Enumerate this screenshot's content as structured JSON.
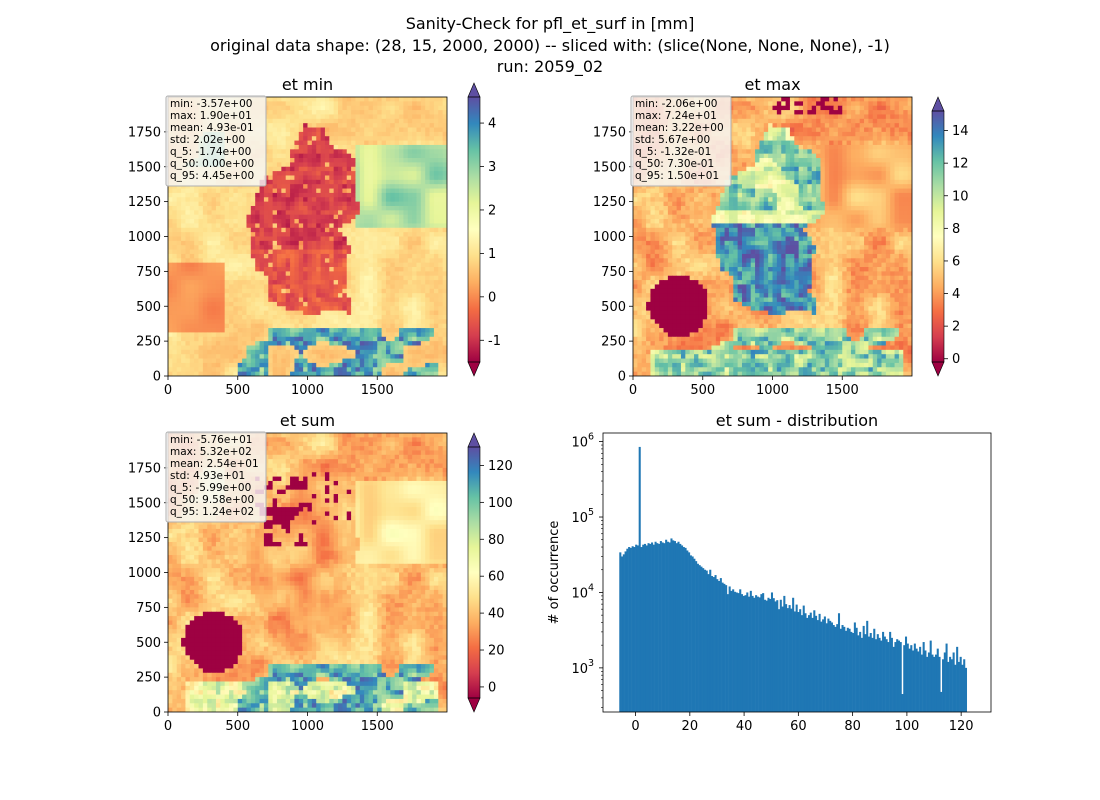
{
  "figure": {
    "title_lines": [
      "Sanity-Check for pfl_et_surf in [mm]",
      "original data shape: (28, 15, 2000, 2000) -- sliced with: (slice(None, None, None), -1)",
      "run: 2059_02"
    ]
  },
  "chart_data": [
    {
      "type": "heatmap",
      "title": "et min",
      "xticks": [
        0,
        500,
        1000,
        1500
      ],
      "yticks": [
        0,
        250,
        500,
        750,
        1000,
        1250,
        1500,
        1750
      ],
      "xlim": [
        0,
        2000
      ],
      "ylim": [
        0,
        2000
      ],
      "colormap": "Spectral",
      "colorbar": {
        "vmin": -1.5,
        "vmax": 4.6,
        "ticks": [
          -1,
          0,
          1,
          2,
          3,
          4
        ],
        "extend": "both"
      },
      "stats": [
        "min: -3.57e+00",
        "max: 1.90e+01",
        "mean: 4.93e-01",
        "std: 2.02e+00",
        "q_5: -1.74e+00",
        "q_50: 0.00e+00",
        "q_95: 4.45e+00"
      ],
      "pattern": "min"
    },
    {
      "type": "heatmap",
      "title": "et max",
      "xticks": [
        0,
        500,
        1000,
        1500
      ],
      "yticks": [
        0,
        250,
        500,
        750,
        1000,
        1250,
        1500,
        1750
      ],
      "xlim": [
        0,
        2000
      ],
      "ylim": [
        0,
        2000
      ],
      "colormap": "Spectral",
      "colorbar": {
        "vmin": -0.2,
        "vmax": 15.2,
        "ticks": [
          0,
          2,
          4,
          6,
          8,
          10,
          12,
          14
        ],
        "extend": "both"
      },
      "stats": [
        "min: -2.06e+00",
        "max: 7.24e+01",
        "mean: 3.22e+00",
        "std: 5.67e+00",
        "q_5: -1.32e-01",
        "q_50: 7.30e-01",
        "q_95: 1.50e+01"
      ],
      "pattern": "max"
    },
    {
      "type": "heatmap",
      "title": "et sum",
      "xticks": [
        0,
        500,
        1000,
        1500
      ],
      "yticks": [
        0,
        250,
        500,
        750,
        1000,
        1250,
        1500,
        1750
      ],
      "xlim": [
        0,
        2000
      ],
      "ylim": [
        0,
        2000
      ],
      "colormap": "Spectral",
      "colorbar": {
        "vmin": -6.0,
        "vmax": 130,
        "ticks": [
          0,
          20,
          40,
          60,
          80,
          100,
          120
        ],
        "extend": "both"
      },
      "stats": [
        "min: -5.76e+01",
        "max: 5.32e+02",
        "mean: 2.54e+01",
        "std: 4.93e+01",
        "q_5: -5.99e+00",
        "q_50: 9.58e+00",
        "q_95: 1.24e+02"
      ],
      "pattern": "sum"
    },
    {
      "type": "bar",
      "subtype": "histogram",
      "title": "et sum - distribution",
      "ylabel": "# of occurrence",
      "xlabel": "",
      "yscale": "log",
      "xlim": [
        -12,
        131
      ],
      "ylim": [
        260,
        1300000
      ],
      "xticks": [
        0,
        20,
        40,
        60,
        80,
        100,
        120
      ],
      "yticks": [
        {
          "value": 1000,
          "label": "10",
          "exp": "3"
        },
        {
          "value": 10000,
          "label": "10",
          "exp": "4"
        },
        {
          "value": 100000,
          "label": "10",
          "exp": "5"
        },
        {
          "value": 1000000,
          "label": "10",
          "exp": "6"
        }
      ],
      "bin_start": -6.0,
      "bin_width": 0.65,
      "values": [
        34000,
        30000,
        32000,
        35000,
        38000,
        40000,
        39000,
        41000,
        40000,
        43000,
        42000,
        850000,
        40000,
        43000,
        44000,
        42000,
        45000,
        44000,
        46000,
        43000,
        47000,
        45000,
        44000,
        48000,
        46000,
        45000,
        50000,
        47000,
        46000,
        52000,
        49000,
        48000,
        45000,
        47000,
        44000,
        42000,
        40000,
        39000,
        36000,
        34000,
        31000,
        30000,
        28000,
        26000,
        24000,
        23000,
        22000,
        21000,
        20000,
        19500,
        17500,
        20000,
        16500,
        16000,
        17000,
        15000,
        14200,
        15500,
        13500,
        13000,
        12500,
        9500,
        12000,
        10500,
        11000,
        10200,
        10000,
        9800,
        11000,
        9500,
        9000,
        9200,
        10000,
        8800,
        10500,
        9000,
        8500,
        9200,
        8800,
        8600,
        9500,
        9800,
        8000,
        7800,
        8500,
        8200,
        10000,
        8400,
        7600,
        7900,
        6000,
        8000,
        6500,
        9000,
        7000,
        6200,
        6800,
        6100,
        8500,
        5600,
        6900,
        5500,
        6000,
        5000,
        6700,
        5300,
        4600,
        5000,
        5400,
        4600,
        5800,
        4900,
        4300,
        5200,
        4100,
        4400,
        4800,
        3900,
        4500,
        4200,
        4000,
        3700,
        3500,
        3800,
        5300,
        3300,
        3700,
        3500,
        3100,
        3400,
        3300,
        3000,
        2900,
        4000,
        3400,
        2700,
        3000,
        2500,
        3600,
        2800,
        4200,
        2600,
        2900,
        2500,
        3300,
        2400,
        2800,
        2500,
        2300,
        3000,
        2600,
        2400,
        2200,
        3000,
        2500,
        1900,
        2200,
        2400,
        2300,
        2200,
        450,
        2000,
        2600,
        2100,
        1800,
        2000,
        1700,
        2100,
        1800,
        1650,
        1900,
        1500,
        2200,
        1700,
        1400,
        1600,
        2300,
        1500,
        1400,
        1500,
        1800,
        1400,
        480,
        1300,
        1600,
        2100,
        1200,
        1400,
        1300,
        1600,
        1100,
        1900,
        1200,
        1400,
        1100,
        1300,
        1000
      ]
    }
  ]
}
